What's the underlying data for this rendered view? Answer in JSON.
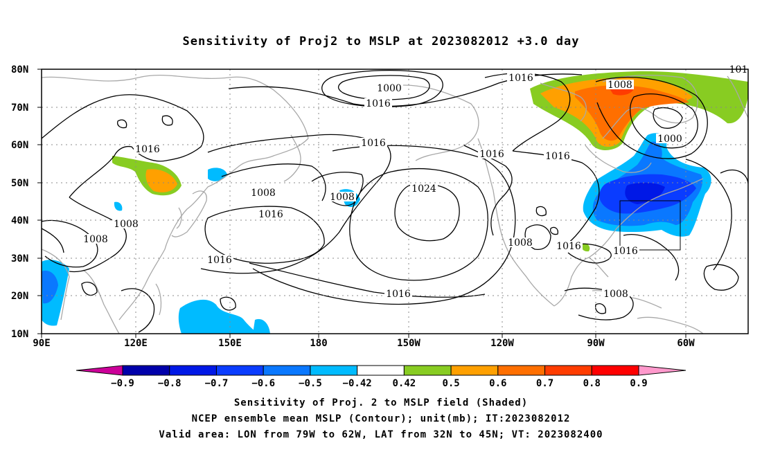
{
  "title": "Sensitivity of Proj2 to MSLP at 2023082012 +3.0 day",
  "map": {
    "lat_ticks": [
      "80N",
      "70N",
      "60N",
      "50N",
      "40N",
      "30N",
      "20N",
      "10N"
    ],
    "lon_ticks": [
      "90E",
      "120E",
      "150E",
      "180",
      "150W",
      "120W",
      "90W",
      "60W"
    ],
    "contour_labels": [
      {
        "id": "c1",
        "text": "1000"
      },
      {
        "id": "c2",
        "text": "1016"
      },
      {
        "id": "c3",
        "text": "1016"
      },
      {
        "id": "c4",
        "text": "1016"
      },
      {
        "id": "c5",
        "text": "1008"
      },
      {
        "id": "c6",
        "text": "1008"
      },
      {
        "id": "c7",
        "text": "1016"
      },
      {
        "id": "c8",
        "text": "1008"
      },
      {
        "id": "c9",
        "text": "1008"
      },
      {
        "id": "c10",
        "text": "1016"
      },
      {
        "id": "c11",
        "text": "1024"
      },
      {
        "id": "c12",
        "text": "1016"
      },
      {
        "id": "c13",
        "text": "1016"
      },
      {
        "id": "c14",
        "text": "1016"
      },
      {
        "id": "c15",
        "text": "1016"
      },
      {
        "id": "c16",
        "text": "1008"
      },
      {
        "id": "c17",
        "text": "1000"
      },
      {
        "id": "c18",
        "text": "1016"
      },
      {
        "id": "c19",
        "text": "1008"
      },
      {
        "id": "c20",
        "text": "1016"
      },
      {
        "id": "c21",
        "text": "1008"
      },
      {
        "id": "c22",
        "text": "101"
      }
    ]
  },
  "colorbar": {
    "labels": [
      "-0.9",
      "-0.8",
      "-0.7",
      "-0.6",
      "-0.5",
      "-0.42",
      "0.42",
      "0.5",
      "0.6",
      "0.7",
      "0.8",
      "0.9"
    ],
    "colors": [
      "#0000aa",
      "#0018e6",
      "#0a3cff",
      "#0a78ff",
      "#00bbff",
      "#ffffff",
      "#88cc22",
      "#ffa000",
      "#ff6f00",
      "#ff3c00",
      "#ff0000"
    ],
    "low_color": "#cc0099",
    "high_color": "#ff99cc"
  },
  "footer": {
    "line1": "Sensitivity of Proj. 2 to MSLP field (Shaded)",
    "line2": "NCEP ensemble mean MSLP (Contour); unit(mb); IT:2023082012",
    "line3": "Valid area: LON from 79W to 62W, LAT from 32N to 45N; VT: 2023082400"
  }
}
